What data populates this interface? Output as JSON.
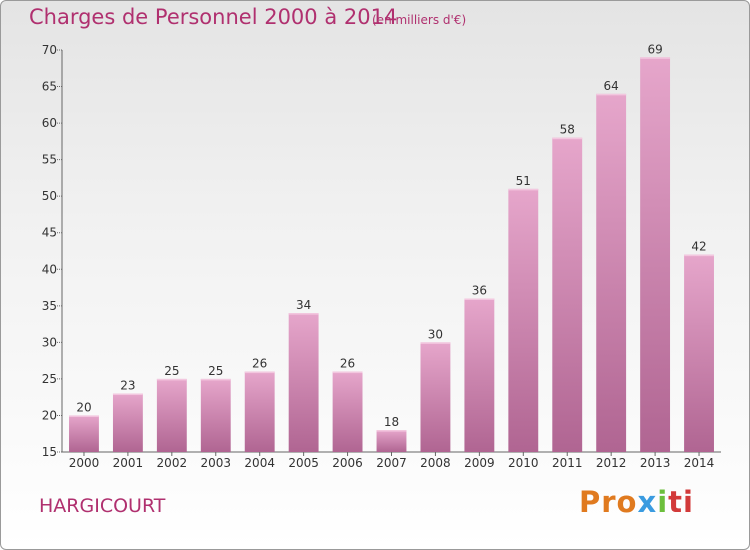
{
  "chart_data": {
    "type": "bar",
    "title": "Charges de Personnel 2000 à 2014",
    "unit": "(en milliers d'€)",
    "categories": [
      "2000",
      "2001",
      "2002",
      "2003",
      "2004",
      "2005",
      "2006",
      "2007",
      "2008",
      "2009",
      "2010",
      "2011",
      "2012",
      "2013",
      "2014"
    ],
    "values": [
      20,
      23,
      25,
      25,
      26,
      34,
      26,
      18,
      30,
      36,
      51,
      58,
      64,
      69,
      42
    ],
    "ylim": [
      15,
      70
    ],
    "yticks": [
      15,
      20,
      25,
      30,
      35,
      40,
      45,
      50,
      55,
      60,
      65,
      70
    ],
    "grid": false,
    "bar_color": "#d07aa8"
  },
  "footer": {
    "commune": "HARGICOURT",
    "logo": [
      "Pro",
      "x",
      "i",
      "ti"
    ]
  }
}
